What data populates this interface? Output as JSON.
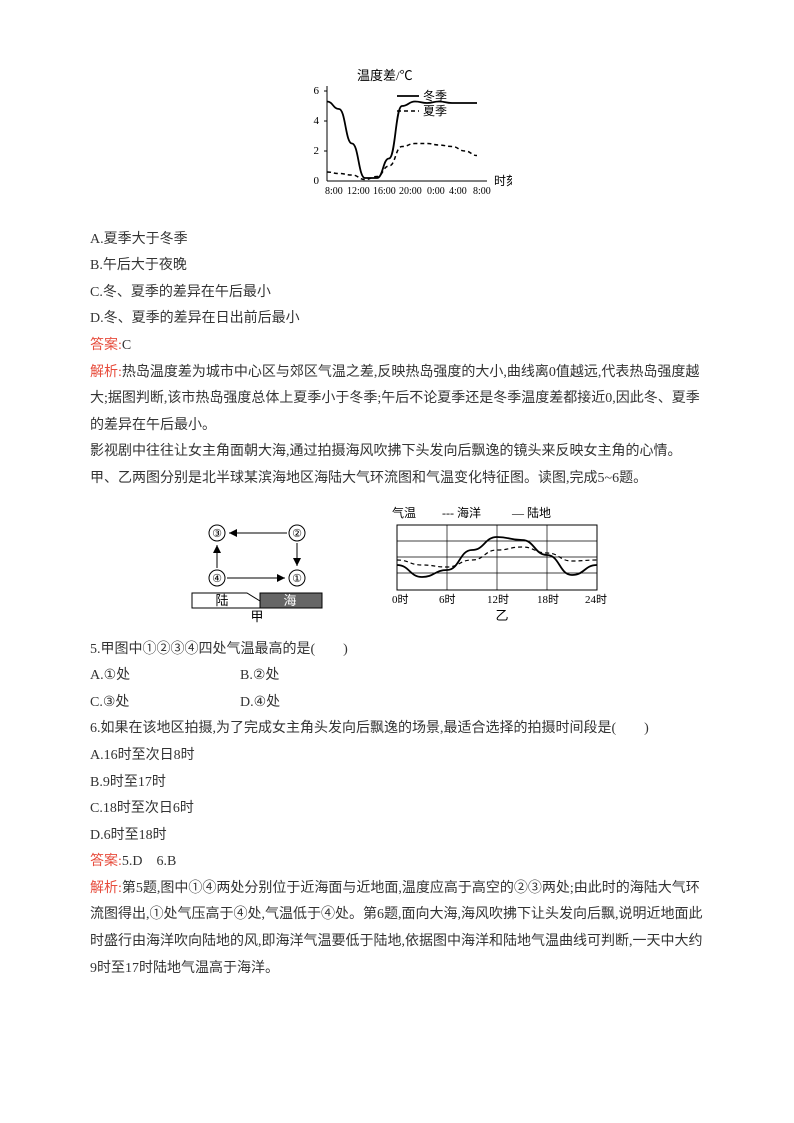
{
  "chart1": {
    "y_axis_label": "温度差/℃",
    "x_axis_label": "时刻",
    "y_ticks": [
      0,
      2,
      4,
      6
    ],
    "x_ticks": [
      "8:00",
      "12:00",
      "16:00",
      "20:00",
      "0:00",
      "4:00",
      "8:00"
    ],
    "legend_winter": "冬季",
    "legend_summer": "夏季",
    "winter_points": [
      [
        0,
        5.3
      ],
      [
        12,
        4.8
      ],
      [
        25,
        2.5
      ],
      [
        38,
        0.2
      ],
      [
        50,
        0.2
      ],
      [
        62,
        1.5
      ],
      [
        75,
        5.0
      ],
      [
        88,
        5.3
      ],
      [
        100,
        5.2
      ],
      [
        112,
        5.3
      ],
      [
        125,
        5.2
      ],
      [
        138,
        5.2
      ],
      [
        150,
        5.2
      ]
    ],
    "summer_points": [
      [
        0,
        0.6
      ],
      [
        12,
        0.5
      ],
      [
        25,
        0.4
      ],
      [
        38,
        0.1
      ],
      [
        50,
        0.3
      ],
      [
        62,
        1.0
      ],
      [
        75,
        2.3
      ],
      [
        88,
        2.5
      ],
      [
        100,
        2.5
      ],
      [
        112,
        2.4
      ],
      [
        125,
        2.3
      ],
      [
        138,
        2.0
      ],
      [
        150,
        1.7
      ]
    ],
    "y_scale": 15,
    "y_max": 6,
    "axis_color": "#000",
    "line_width": 1.5
  },
  "q4": {
    "opts": {
      "A": "A.夏季大于冬季",
      "B": "B.午后大于夜晚",
      "C": "C.冬、夏季的差异在午后最小",
      "D": "D.冬、夏季的差异在日出前后最小"
    },
    "answer_label": "答案:",
    "answer_val": "C",
    "explain_label": "解析:",
    "explain": "热岛温度差为城市中心区与郊区气温之差,反映热岛强度的大小,曲线离0值越远,代表热岛强度越大;据图判断,该市热岛强度总体上夏季小于冬季;午后不论夏季还是冬季温度差都接近0,因此冬、夏季的差异在午后最小。"
  },
  "intro56": "影视剧中往往让女主角面朝大海,通过拍摄海风吹拂下头发向后飘逸的镜头来反映女主角的心情。甲、乙两图分别是北半球某滨海地区海陆大气环流图和气温变化特征图。读图,完成5~6题。",
  "diagram_jia": {
    "land": "陆",
    "sea": "海",
    "label": "甲",
    "nodes": [
      "①",
      "②",
      "③",
      "④"
    ]
  },
  "diagram_yi": {
    "y_label": "气温",
    "legend_sea": "--- 海洋",
    "legend_land": "— 陆地",
    "label": "乙",
    "x_ticks": [
      "0时",
      "6时",
      "12时",
      "18时",
      "24时"
    ],
    "land_points": [
      [
        0,
        40
      ],
      [
        25,
        52
      ],
      [
        50,
        45
      ],
      [
        75,
        25
      ],
      [
        100,
        12
      ],
      [
        125,
        15
      ],
      [
        150,
        30
      ],
      [
        175,
        50
      ],
      [
        200,
        40
      ]
    ],
    "sea_points": [
      [
        0,
        35
      ],
      [
        25,
        40
      ],
      [
        50,
        42
      ],
      [
        75,
        35
      ],
      [
        100,
        25
      ],
      [
        125,
        22
      ],
      [
        150,
        28
      ],
      [
        175,
        36
      ],
      [
        200,
        35
      ]
    ]
  },
  "q5": {
    "stem": "5.甲图中①②③④四处气温最高的是(　　)",
    "A": "A.①处",
    "B": "B.②处",
    "C": "C.③处",
    "D": "D.④处"
  },
  "q6": {
    "stem": "6.如果在该地区拍摄,为了完成女主角头发向后飘逸的场景,最适合选择的拍摄时间段是(　　)",
    "A": "A.16时至次日8时",
    "B": "B.9时至17时",
    "C": "C.18时至次日6时",
    "D": "D.6时至18时"
  },
  "ans56_label": "答案:",
  "ans56_val": "5.D　6.B",
  "explain56_label": "解析:",
  "explain56": "第5题,图中①④两处分别位于近海面与近地面,温度应高于高空的②③两处;由此时的海陆大气环流图得出,①处气压高于④处,气温低于④处。第6题,面向大海,海风吹拂下让头发向后飘,说明近地面此时盛行由海洋吹向陆地的风,即海洋气温要低于陆地,依据图中海洋和陆地气温曲线可判断,一天中大约9时至17时陆地气温高于海洋。"
}
